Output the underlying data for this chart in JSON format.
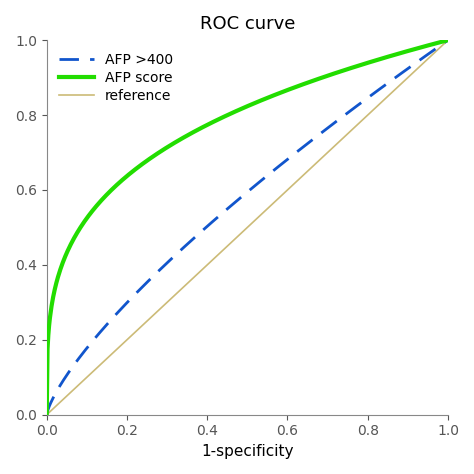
{
  "title": "ROC curve",
  "xlabel": "1-specificity",
  "ylabel": "",
  "xlim": [
    0.0,
    1.0
  ],
  "ylim": [
    0.0,
    1.0
  ],
  "xticks": [
    0.0,
    0.2,
    0.4,
    0.6,
    0.8,
    1.0
  ],
  "yticks": [
    0.0,
    0.2,
    0.4,
    0.6,
    0.8,
    1.0
  ],
  "background_color": "#ffffff",
  "afp_score_color": "#22dd00",
  "afp_400_color": "#1155cc",
  "reference_color": "#ccbb77",
  "afp_score_linewidth": 3.0,
  "afp_400_linewidth": 2.0,
  "reference_linewidth": 1.2,
  "legend_labels": [
    "AFP >400",
    "AFP score",
    "reference"
  ],
  "title_fontsize": 13,
  "label_fontsize": 11,
  "tick_fontsize": 10,
  "afp_score_power": 0.28,
  "afp_400_power": 0.75,
  "spine_color": "#888888",
  "tick_color": "#555555"
}
